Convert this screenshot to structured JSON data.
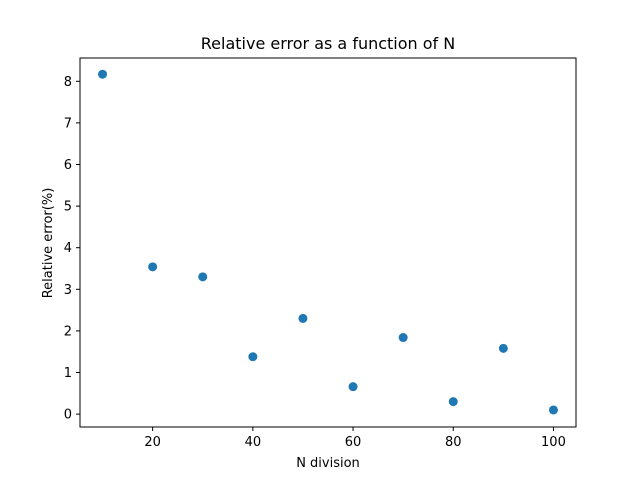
{
  "chart_data": {
    "type": "scatter",
    "title": "Relative error as a function of N",
    "xlabel": "N division",
    "ylabel": "Relative error(%)",
    "xlim": [
      5.5,
      104.5
    ],
    "ylim": [
      -0.31,
      8.56
    ],
    "xticks": [
      20,
      40,
      60,
      80,
      100
    ],
    "yticks": [
      0,
      1,
      2,
      3,
      4,
      5,
      6,
      7,
      8
    ],
    "grid": false,
    "series": [
      {
        "color": "#1f77b4",
        "points": [
          {
            "x": 10,
            "y": 8.17
          },
          {
            "x": 20,
            "y": 3.54
          },
          {
            "x": 30,
            "y": 3.3
          },
          {
            "x": 40,
            "y": 1.38
          },
          {
            "x": 50,
            "y": 2.3
          },
          {
            "x": 60,
            "y": 0.66
          },
          {
            "x": 70,
            "y": 1.84
          },
          {
            "x": 80,
            "y": 0.3
          },
          {
            "x": 90,
            "y": 1.58
          },
          {
            "x": 100,
            "y": 0.1
          }
        ]
      }
    ]
  }
}
